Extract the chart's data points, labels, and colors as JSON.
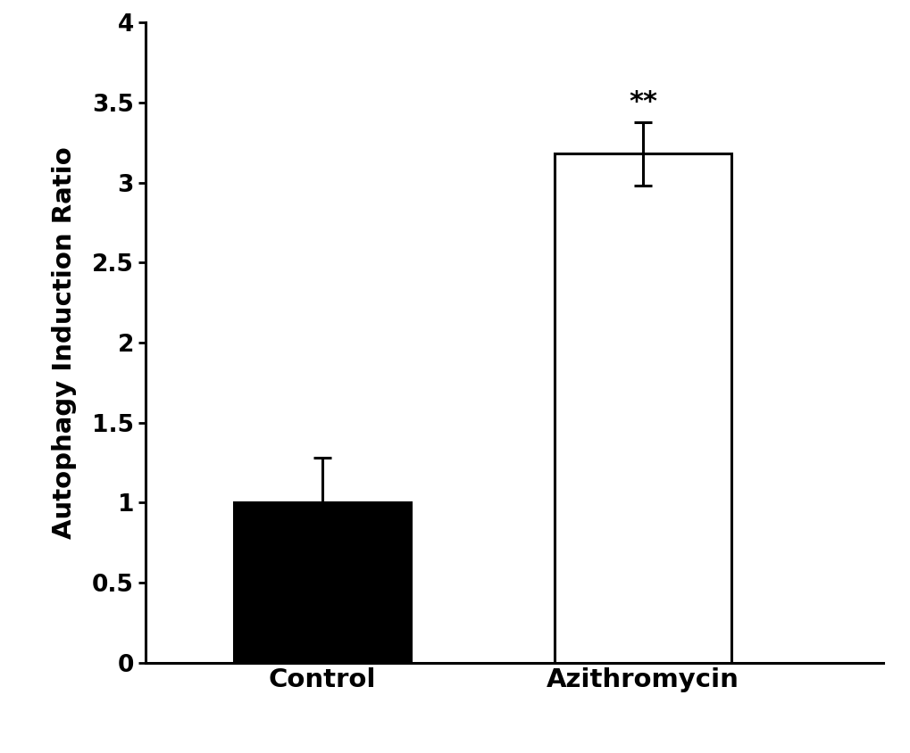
{
  "categories": [
    "Control",
    "Azithromycin"
  ],
  "values": [
    1.0,
    3.18
  ],
  "errors": [
    0.28,
    0.2
  ],
  "bar_colors": [
    "#000000",
    "#ffffff"
  ],
  "bar_edgecolors": [
    "#000000",
    "#000000"
  ],
  "bar_width": 0.55,
  "bar_positions": [
    1,
    2
  ],
  "ylabel": "Autophagy Induction Ratio",
  "ylim": [
    0,
    4.0
  ],
  "yticks": [
    0,
    0.5,
    1.0,
    1.5,
    2.0,
    2.5,
    3.0,
    3.5,
    4.0
  ],
  "ytick_labels": [
    "0",
    "0.5",
    "1",
    "1.5",
    "2",
    "2.5",
    "3",
    "3.5",
    "4"
  ],
  "significance_label": "**",
  "significance_bar_index": 1,
  "title": "",
  "background_color": "#ffffff",
  "ylabel_fontsize": 21,
  "tick_fontsize": 19,
  "xlabel_fontsize": 21,
  "sig_fontsize": 22,
  "error_capsize": 7,
  "error_linewidth": 2.2,
  "bar_linewidth": 2.2,
  "spine_linewidth": 2.2,
  "xlim": [
    0.45,
    2.75
  ]
}
